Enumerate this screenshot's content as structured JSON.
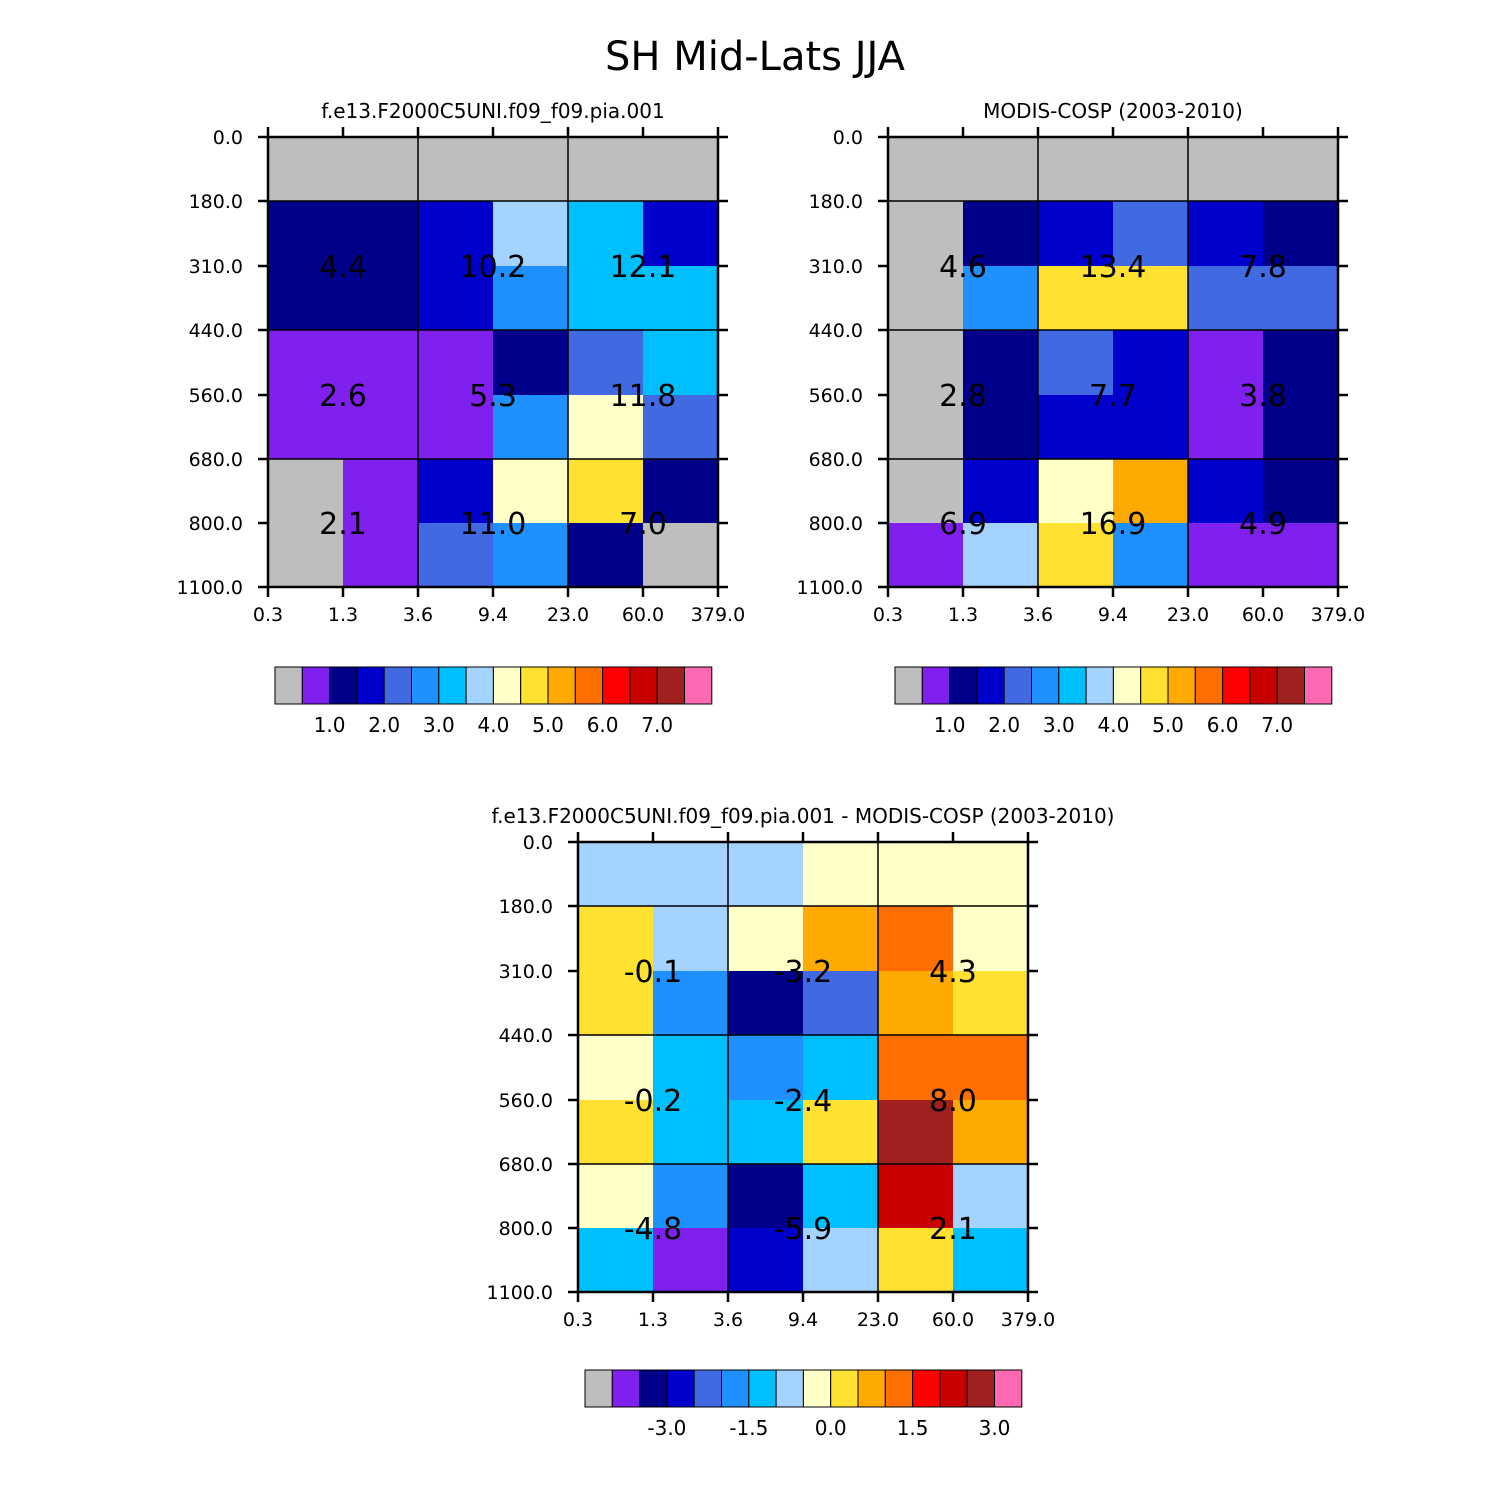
{
  "title": "SH Mid-Lats JJA",
  "colors": {
    "palette": [
      "#bebebe",
      "#8020ee",
      "#00008b",
      "#0000cd",
      "#4169e1",
      "#1e90ff",
      "#00bfff",
      "#a4d3ff",
      "#ffffc8",
      "#ffe132",
      "#ffaa00",
      "#ff6e00",
      "#ff0000",
      "#c80000",
      "#a02020",
      "#ff69b4"
    ]
  },
  "chart_data": [
    {
      "type": "heatmap",
      "title": "f.e13.F2000C5UNI.f09_f09.pia.001",
      "x_ticks": [
        "0.3",
        "1.3",
        "3.6",
        "9.4",
        "23.0",
        "60.0",
        "379.0"
      ],
      "y_ticks": [
        "0.0",
        "180.0",
        "310.0",
        "440.0",
        "560.0",
        "680.0",
        "800.0",
        "1100.0"
      ],
      "cells": [
        [
          0,
          0,
          0,
          0,
          0,
          0
        ],
        [
          2,
          2,
          3,
          7,
          6,
          3
        ],
        [
          2,
          2,
          3,
          5,
          6,
          6
        ],
        [
          1,
          1,
          1,
          2,
          4,
          6
        ],
        [
          1,
          1,
          1,
          5,
          8,
          4
        ],
        [
          0,
          1,
          3,
          8,
          9,
          2
        ],
        [
          0,
          1,
          4,
          5,
          2,
          0
        ]
      ],
      "box_values": [
        [
          "4.4",
          "10.2",
          "12.1"
        ],
        [
          "2.6",
          "5.3",
          "11.8"
        ],
        [
          "2.1",
          "11.0",
          "7.0"
        ]
      ],
      "colorbar": {
        "labels": [
          "1.0",
          "2.0",
          "3.0",
          "4.0",
          "5.0",
          "6.0",
          "7.0"
        ]
      }
    },
    {
      "type": "heatmap",
      "title": "MODIS-COSP (2003-2010)",
      "x_ticks": [
        "0.3",
        "1.3",
        "3.6",
        "9.4",
        "23.0",
        "60.0",
        "379.0"
      ],
      "y_ticks": [
        "0.0",
        "180.0",
        "310.0",
        "440.0",
        "560.0",
        "680.0",
        "800.0",
        "1100.0"
      ],
      "cells": [
        [
          0,
          0,
          0,
          0,
          0,
          0
        ],
        [
          0,
          2,
          3,
          4,
          3,
          2
        ],
        [
          0,
          5,
          9,
          9,
          4,
          4
        ],
        [
          0,
          2,
          4,
          3,
          1,
          2
        ],
        [
          0,
          2,
          3,
          3,
          1,
          2
        ],
        [
          0,
          3,
          8,
          10,
          3,
          2
        ],
        [
          1,
          7,
          9,
          5,
          1,
          1
        ]
      ],
      "box_values": [
        [
          "4.6",
          "13.4",
          "7.8"
        ],
        [
          "2.8",
          "7.7",
          "3.8"
        ],
        [
          "6.9",
          "16.9",
          "4.9"
        ]
      ],
      "colorbar": {
        "labels": [
          "1.0",
          "2.0",
          "3.0",
          "4.0",
          "5.0",
          "6.0",
          "7.0"
        ]
      }
    },
    {
      "type": "heatmap",
      "title": "f.e13.F2000C5UNI.f09_f09.pia.001 - MODIS-COSP (2003-2010)",
      "x_ticks": [
        "0.3",
        "1.3",
        "3.6",
        "9.4",
        "23.0",
        "60.0",
        "379.0"
      ],
      "y_ticks": [
        "0.0",
        "180.0",
        "310.0",
        "440.0",
        "560.0",
        "680.0",
        "800.0",
        "1100.0"
      ],
      "cells": [
        [
          7,
          7,
          7,
          8,
          8,
          8
        ],
        [
          9,
          7,
          8,
          10,
          11,
          8
        ],
        [
          9,
          5,
          2,
          4,
          10,
          9
        ],
        [
          8,
          6,
          5,
          6,
          11,
          11
        ],
        [
          9,
          6,
          6,
          9,
          14,
          10
        ],
        [
          8,
          5,
          2,
          6,
          13,
          7
        ],
        [
          6,
          1,
          3,
          7,
          9,
          6
        ]
      ],
      "box_values": [
        [
          "-0.1",
          "-3.2",
          "4.3"
        ],
        [
          "-0.2",
          "-2.4",
          "8.0"
        ],
        [
          "-4.8",
          "-5.9",
          "2.1"
        ]
      ],
      "colorbar": {
        "labels": [
          "-3.0",
          "-1.5",
          "0.0",
          "1.5",
          "3.0"
        ]
      }
    }
  ]
}
